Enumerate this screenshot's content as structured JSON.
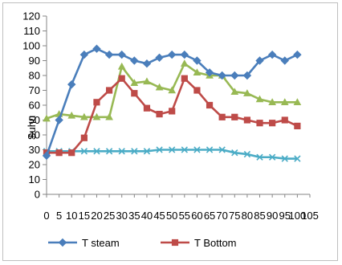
{
  "chart_data": {
    "type": "line",
    "title": "",
    "xlabel": "",
    "ylabel": "Suhu",
    "xlim": [
      0,
      105
    ],
    "ylim": [
      0,
      120
    ],
    "x_ticks": [
      0,
      5,
      10,
      15,
      20,
      25,
      30,
      35,
      40,
      45,
      50,
      55,
      60,
      65,
      70,
      75,
      80,
      85,
      90,
      95,
      100,
      105
    ],
    "x_tick_labels": [
      "0",
      "5",
      "10",
      "15",
      "20",
      "25",
      "30",
      "35",
      "40",
      "45",
      "50",
      "55",
      "60",
      "65",
      "70",
      "75",
      "80",
      "85",
      "90",
      "95",
      "100",
      "105"
    ],
    "y_ticks": [
      0,
      10,
      20,
      30,
      40,
      50,
      60,
      70,
      80,
      90,
      100,
      110,
      120
    ],
    "y_tick_labels": [
      "0",
      "10",
      "20",
      "30",
      "40",
      "50",
      "60",
      "70",
      "80",
      "90",
      "100",
      "110",
      "120"
    ],
    "grid": false,
    "legend_position": "bottom",
    "x": [
      0,
      5,
      10,
      15,
      20,
      25,
      30,
      35,
      40,
      45,
      50,
      55,
      60,
      65,
      70,
      75,
      80,
      85,
      90,
      95,
      100
    ],
    "series": [
      {
        "name": "T steam",
        "color": "#4a7ebb",
        "marker": "diamond",
        "values": [
          26,
          50,
          74,
          94,
          98,
          94,
          94,
          90,
          88,
          92,
          94,
          94,
          90,
          82,
          80,
          80,
          80,
          90,
          94,
          90,
          94
        ]
      },
      {
        "name": "T Bottom",
        "color": "#be4b48",
        "marker": "square",
        "values": [
          28,
          28,
          28,
          38,
          62,
          70,
          78,
          68,
          58,
          54,
          56,
          78,
          70,
          60,
          52,
          52,
          50,
          48,
          48,
          50,
          46
        ]
      },
      {
        "name": "",
        "color": "#98b954",
        "marker": "triangle",
        "values": [
          51,
          54,
          53,
          52,
          52,
          52,
          86,
          75,
          76,
          72,
          70,
          88,
          82,
          80,
          80,
          69,
          68,
          64,
          62,
          62,
          62
        ]
      },
      {
        "name": "",
        "color": "#4bacc6",
        "marker": "x",
        "values": [
          29,
          29,
          29,
          29,
          29,
          29,
          29,
          29,
          29,
          30,
          30,
          30,
          30,
          30,
          30,
          28,
          27,
          25,
          25,
          24,
          24
        ]
      }
    ]
  }
}
